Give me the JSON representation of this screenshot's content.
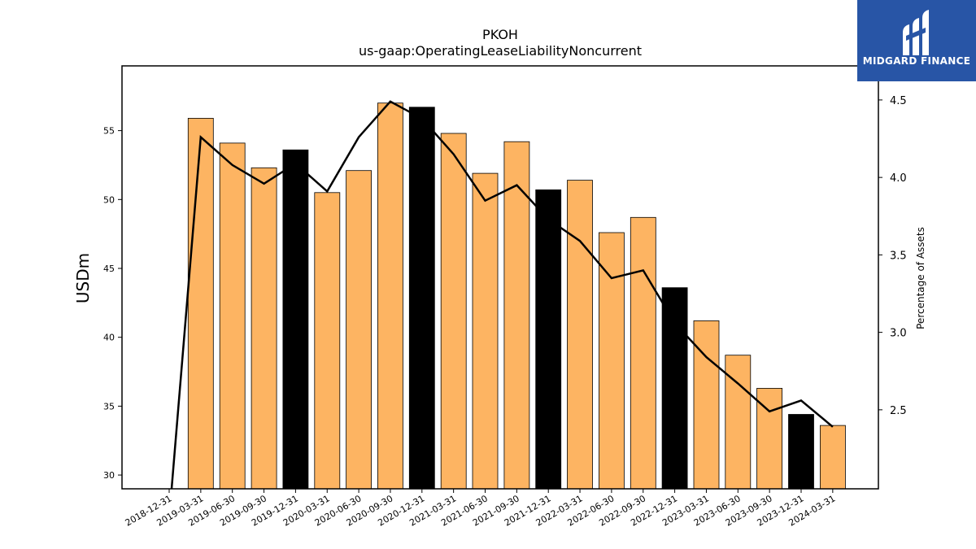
{
  "brand": {
    "name": "MIDGARD FINANCE",
    "bg_color": "#2855a6"
  },
  "chart_data": {
    "type": "bar",
    "title": "PKOH",
    "subtitle": "us-gaap:OperatingLeaseLiabilityNoncurrent",
    "ylabel": "USDm",
    "y2label": "Percentage of Assets",
    "ylim": [
      29,
      59.7
    ],
    "y2lim": [
      1.99,
      4.72
    ],
    "yticks": [
      30,
      35,
      40,
      45,
      50,
      55
    ],
    "y2ticks": [
      2.5,
      3.0,
      3.5,
      4.0,
      4.5
    ],
    "categories": [
      "2018-12-31",
      "2019-03-31",
      "2019-06-30",
      "2019-09-30",
      "2019-12-31",
      "2020-03-31",
      "2020-06-30",
      "2020-09-30",
      "2020-12-31",
      "2021-03-31",
      "2021-06-30",
      "2021-09-30",
      "2021-12-31",
      "2022-03-31",
      "2022-06-30",
      "2022-09-30",
      "2022-12-31",
      "2023-03-31",
      "2023-06-30",
      "2023-09-30",
      "2023-12-31",
      "2024-03-31"
    ],
    "series": [
      {
        "kind": "bar",
        "values": [
          null,
          55.9,
          54.1,
          52.3,
          53.6,
          50.5,
          52.1,
          57.0,
          56.7,
          54.8,
          51.9,
          54.2,
          50.7,
          51.4,
          47.6,
          48.7,
          43.6,
          41.2,
          38.7,
          36.3,
          34.4,
          33.6
        ]
      },
      {
        "kind": "line",
        "axis": "right",
        "values": [
          1.8,
          4.26,
          4.08,
          3.96,
          4.09,
          3.91,
          4.26,
          4.49,
          4.38,
          4.15,
          3.85,
          3.95,
          3.73,
          3.59,
          3.35,
          3.4,
          3.06,
          2.84,
          2.67,
          2.49,
          2.56,
          2.39
        ]
      }
    ],
    "bar_colors": {
      "quarter": "#fdb462",
      "year_end": "#000000"
    },
    "line_color": "#000000",
    "grid": false,
    "legend": "none"
  }
}
